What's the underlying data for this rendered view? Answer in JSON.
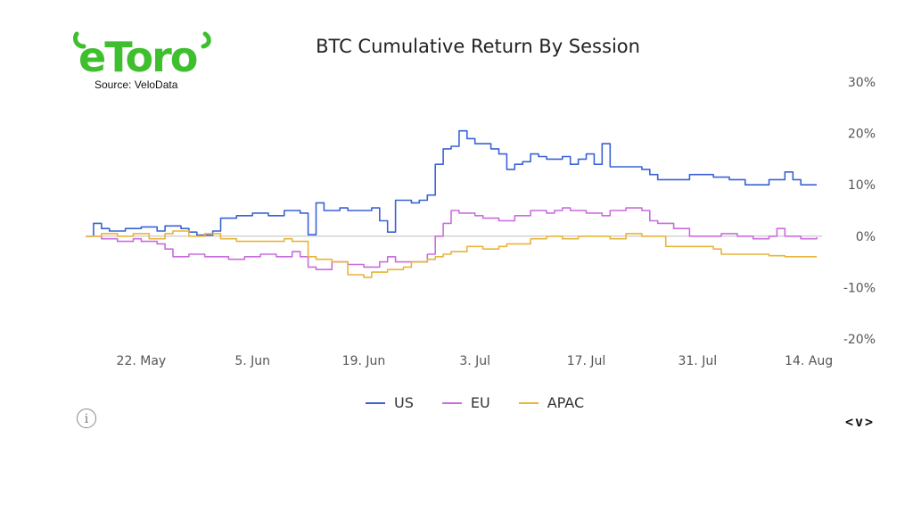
{
  "brand": {
    "logo_text": "eToro",
    "logo_color": "#3fbf2e"
  },
  "source_label": "Source: VeloData",
  "chart_data": {
    "type": "line",
    "title": "BTC Cumulative Return By Session",
    "xlabel": "",
    "ylabel": "",
    "x_range": [
      "2023-05-15",
      "2023-08-15"
    ],
    "ylim": [
      -20,
      30
    ],
    "y_ticks": [
      30,
      20,
      10,
      0,
      -10,
      -20
    ],
    "y_tick_labels": [
      "30%",
      "20%",
      "10%",
      "0%",
      "-10%",
      "-20%"
    ],
    "x_ticks": [
      "2023-05-22",
      "2023-06-05",
      "2023-06-19",
      "2023-07-03",
      "2023-07-17",
      "2023-07-31",
      "2023-08-14"
    ],
    "x_tick_labels": [
      "22. May",
      "5. Jun",
      "19. Jun",
      "3. Jul",
      "17. Jul",
      "31. Jul",
      "14. Aug"
    ],
    "grid": false,
    "zero_line": true,
    "legend_placement": "bottom-center",
    "series": [
      {
        "name": "US",
        "color": "#3a62d6",
        "points": [
          [
            "2023-05-15",
            0
          ],
          [
            "2023-05-16",
            2.5
          ],
          [
            "2023-05-17",
            1.5
          ],
          [
            "2023-05-18",
            1
          ],
          [
            "2023-05-20",
            1.5
          ],
          [
            "2023-05-22",
            1.8
          ],
          [
            "2023-05-24",
            1
          ],
          [
            "2023-05-25",
            2
          ],
          [
            "2023-05-27",
            1.5
          ],
          [
            "2023-05-28",
            0.8
          ],
          [
            "2023-05-29",
            0.2
          ],
          [
            "2023-05-31",
            1
          ],
          [
            "2023-06-01",
            3.5
          ],
          [
            "2023-06-03",
            4
          ],
          [
            "2023-06-05",
            4.5
          ],
          [
            "2023-06-07",
            4
          ],
          [
            "2023-06-09",
            5
          ],
          [
            "2023-06-11",
            4.5
          ],
          [
            "2023-06-12",
            0.3
          ],
          [
            "2023-06-13",
            6.5
          ],
          [
            "2023-06-14",
            5
          ],
          [
            "2023-06-16",
            5.5
          ],
          [
            "2023-06-17",
            5
          ],
          [
            "2023-06-19",
            5
          ],
          [
            "2023-06-20",
            5.5
          ],
          [
            "2023-06-21",
            3
          ],
          [
            "2023-06-22",
            0.8
          ],
          [
            "2023-06-23",
            7
          ],
          [
            "2023-06-25",
            6.5
          ],
          [
            "2023-06-26",
            7
          ],
          [
            "2023-06-27",
            8
          ],
          [
            "2023-06-28",
            14
          ],
          [
            "2023-06-29",
            17
          ],
          [
            "2023-06-30",
            17.5
          ],
          [
            "2023-07-01",
            20.5
          ],
          [
            "2023-07-02",
            19
          ],
          [
            "2023-07-03",
            18
          ],
          [
            "2023-07-04",
            18
          ],
          [
            "2023-07-05",
            17
          ],
          [
            "2023-07-06",
            16
          ],
          [
            "2023-07-07",
            13
          ],
          [
            "2023-07-08",
            14
          ],
          [
            "2023-07-09",
            14.5
          ],
          [
            "2023-07-10",
            16
          ],
          [
            "2023-07-11",
            15.5
          ],
          [
            "2023-07-12",
            15
          ],
          [
            "2023-07-14",
            15.5
          ],
          [
            "2023-07-15",
            14
          ],
          [
            "2023-07-16",
            15
          ],
          [
            "2023-07-17",
            16
          ],
          [
            "2023-07-18",
            14
          ],
          [
            "2023-07-19",
            18
          ],
          [
            "2023-07-20",
            13.5
          ],
          [
            "2023-07-22",
            13.5
          ],
          [
            "2023-07-24",
            13
          ],
          [
            "2023-07-25",
            12
          ],
          [
            "2023-07-26",
            11
          ],
          [
            "2023-07-28",
            11
          ],
          [
            "2023-07-30",
            12
          ],
          [
            "2023-07-31",
            12
          ],
          [
            "2023-08-02",
            11.5
          ],
          [
            "2023-08-04",
            11
          ],
          [
            "2023-08-05",
            11
          ],
          [
            "2023-08-06",
            10
          ],
          [
            "2023-08-07",
            10
          ],
          [
            "2023-08-09",
            11
          ],
          [
            "2023-08-10",
            11
          ],
          [
            "2023-08-11",
            12.5
          ],
          [
            "2023-08-12",
            11
          ],
          [
            "2023-08-13",
            10
          ],
          [
            "2023-08-15",
            10
          ]
        ]
      },
      {
        "name": "EU",
        "color": "#c96ddc",
        "points": [
          [
            "2023-05-15",
            0
          ],
          [
            "2023-05-17",
            -0.5
          ],
          [
            "2023-05-19",
            -1
          ],
          [
            "2023-05-21",
            -0.5
          ],
          [
            "2023-05-22",
            -1
          ],
          [
            "2023-05-24",
            -1.5
          ],
          [
            "2023-05-25",
            -2.5
          ],
          [
            "2023-05-26",
            -4
          ],
          [
            "2023-05-28",
            -3.5
          ],
          [
            "2023-05-30",
            -4
          ],
          [
            "2023-06-01",
            -4
          ],
          [
            "2023-06-02",
            -4.5
          ],
          [
            "2023-06-04",
            -4
          ],
          [
            "2023-06-06",
            -3.5
          ],
          [
            "2023-06-08",
            -4
          ],
          [
            "2023-06-10",
            -3
          ],
          [
            "2023-06-11",
            -4
          ],
          [
            "2023-06-12",
            -6
          ],
          [
            "2023-06-13",
            -6.5
          ],
          [
            "2023-06-15",
            -5
          ],
          [
            "2023-06-17",
            -5.5
          ],
          [
            "2023-06-19",
            -6
          ],
          [
            "2023-06-21",
            -5
          ],
          [
            "2023-06-22",
            -4
          ],
          [
            "2023-06-23",
            -5
          ],
          [
            "2023-06-25",
            -5
          ],
          [
            "2023-06-27",
            -3.5
          ],
          [
            "2023-06-28",
            0
          ],
          [
            "2023-06-29",
            2.5
          ],
          [
            "2023-06-30",
            5
          ],
          [
            "2023-07-01",
            4.5
          ],
          [
            "2023-07-03",
            4
          ],
          [
            "2023-07-04",
            3.5
          ],
          [
            "2023-07-06",
            3
          ],
          [
            "2023-07-07",
            3
          ],
          [
            "2023-07-08",
            4
          ],
          [
            "2023-07-10",
            5
          ],
          [
            "2023-07-12",
            4.5
          ],
          [
            "2023-07-13",
            5
          ],
          [
            "2023-07-14",
            5.5
          ],
          [
            "2023-07-15",
            5
          ],
          [
            "2023-07-17",
            4.5
          ],
          [
            "2023-07-19",
            4
          ],
          [
            "2023-07-20",
            5
          ],
          [
            "2023-07-22",
            5.5
          ],
          [
            "2023-07-24",
            5
          ],
          [
            "2023-07-25",
            3
          ],
          [
            "2023-07-26",
            2.5
          ],
          [
            "2023-07-28",
            1.5
          ],
          [
            "2023-07-30",
            0
          ],
          [
            "2023-08-01",
            0
          ],
          [
            "2023-08-03",
            0.5
          ],
          [
            "2023-08-05",
            0
          ],
          [
            "2023-08-07",
            -0.5
          ],
          [
            "2023-08-09",
            0
          ],
          [
            "2023-08-10",
            1.5
          ],
          [
            "2023-08-11",
            0
          ],
          [
            "2023-08-13",
            -0.5
          ],
          [
            "2023-08-15",
            -0.2
          ]
        ]
      },
      {
        "name": "APAC",
        "color": "#e8b43a",
        "points": [
          [
            "2023-05-15",
            0
          ],
          [
            "2023-05-17",
            0.5
          ],
          [
            "2023-05-19",
            0
          ],
          [
            "2023-05-21",
            0.5
          ],
          [
            "2023-05-23",
            -0.5
          ],
          [
            "2023-05-25",
            0.5
          ],
          [
            "2023-05-26",
            1
          ],
          [
            "2023-05-28",
            0
          ],
          [
            "2023-05-30",
            0.5
          ],
          [
            "2023-06-01",
            -0.5
          ],
          [
            "2023-06-03",
            -1
          ],
          [
            "2023-06-05",
            -1
          ],
          [
            "2023-06-07",
            -1
          ],
          [
            "2023-06-09",
            -0.5
          ],
          [
            "2023-06-10",
            -1
          ],
          [
            "2023-06-11",
            -1
          ],
          [
            "2023-06-12",
            -4
          ],
          [
            "2023-06-13",
            -4.5
          ],
          [
            "2023-06-15",
            -5
          ],
          [
            "2023-06-17",
            -7.5
          ],
          [
            "2023-06-19",
            -8
          ],
          [
            "2023-06-20",
            -7
          ],
          [
            "2023-06-22",
            -6.5
          ],
          [
            "2023-06-24",
            -6
          ],
          [
            "2023-06-25",
            -5
          ],
          [
            "2023-06-27",
            -4.5
          ],
          [
            "2023-06-28",
            -4
          ],
          [
            "2023-06-29",
            -3.5
          ],
          [
            "2023-06-30",
            -3
          ],
          [
            "2023-07-02",
            -2
          ],
          [
            "2023-07-04",
            -2.5
          ],
          [
            "2023-07-06",
            -2
          ],
          [
            "2023-07-07",
            -1.5
          ],
          [
            "2023-07-09",
            -1.5
          ],
          [
            "2023-07-10",
            -0.5
          ],
          [
            "2023-07-12",
            0
          ],
          [
            "2023-07-14",
            -0.5
          ],
          [
            "2023-07-16",
            0
          ],
          [
            "2023-07-18",
            0
          ],
          [
            "2023-07-20",
            -0.5
          ],
          [
            "2023-07-22",
            0.5
          ],
          [
            "2023-07-24",
            0
          ],
          [
            "2023-07-26",
            0
          ],
          [
            "2023-07-27",
            -2
          ],
          [
            "2023-07-29",
            -2
          ],
          [
            "2023-07-31",
            -2
          ],
          [
            "2023-08-02",
            -2.5
          ],
          [
            "2023-08-03",
            -3.5
          ],
          [
            "2023-08-05",
            -3.5
          ],
          [
            "2023-08-07",
            -3.5
          ],
          [
            "2023-08-09",
            -3.8
          ],
          [
            "2023-08-11",
            -4
          ],
          [
            "2023-08-13",
            -4
          ],
          [
            "2023-08-15",
            -4
          ]
        ]
      }
    ]
  },
  "legend": {
    "items": [
      {
        "label": "US",
        "color": "#3a62d6"
      },
      {
        "label": "EU",
        "color": "#c96ddc"
      },
      {
        "label": "APAC",
        "color": "#e8b43a"
      }
    ]
  },
  "controls": {
    "info_icon": "info-icon",
    "nav_label": "<v>"
  }
}
